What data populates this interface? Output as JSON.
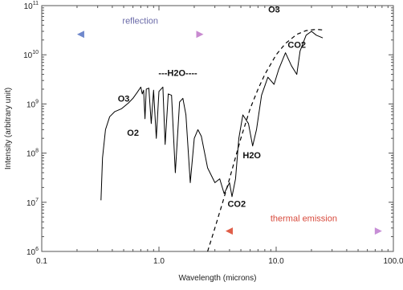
{
  "chart_data": {
    "type": "line",
    "title": "",
    "xlabel": "Wavelength (microns)",
    "ylabel": "Intensity (arbitrary unit)",
    "x_scale": "log",
    "y_scale": "log",
    "xlim": [
      0.1,
      100.0
    ],
    "ylim": [
      1000000.0,
      100000000000.0
    ],
    "x_ticks": [
      {
        "value": 0.1,
        "label": "0.1"
      },
      {
        "value": 1.0,
        "label": "1.0"
      },
      {
        "value": 10.0,
        "label": "10.0"
      },
      {
        "value": 100.0,
        "label": "100.0"
      }
    ],
    "y_ticks": [
      {
        "value": 1000000.0,
        "base": "10",
        "exp": "6"
      },
      {
        "value": 10000000.0,
        "base": "10",
        "exp": "7"
      },
      {
        "value": 100000000.0,
        "base": "10",
        "exp": "8"
      },
      {
        "value": 1000000000.0,
        "base": "10",
        "exp": "9"
      },
      {
        "value": 10000000000.0,
        "base": "10",
        "exp": "10"
      },
      {
        "value": 100000000000.0,
        "base": "10",
        "exp": "11"
      }
    ],
    "grid": false,
    "series": [
      {
        "style": "solid",
        "color": "#000000",
        "points": [
          [
            0.32,
            11000000.0
          ],
          [
            0.33,
            80000000.0
          ],
          [
            0.35,
            300000000.0
          ],
          [
            0.38,
            550000000.0
          ],
          [
            0.42,
            700000000.0
          ],
          [
            0.48,
            800000000.0
          ],
          [
            0.55,
            1050000000.0
          ],
          [
            0.6,
            1300000000.0
          ],
          [
            0.65,
            1700000000.0
          ],
          [
            0.7,
            2200000000.0
          ],
          [
            0.72,
            1600000000.0
          ],
          [
            0.74,
            1900000000.0
          ],
          [
            0.76,
            500000000.0
          ],
          [
            0.78,
            2000000000.0
          ],
          [
            0.82,
            2100000000.0
          ],
          [
            0.86,
            400000000.0
          ],
          [
            0.9,
            1900000000.0
          ],
          [
            0.95,
            200000000.0
          ],
          [
            1.0,
            1800000000.0
          ],
          [
            1.08,
            2200000000.0
          ],
          [
            1.13,
            150000000.0
          ],
          [
            1.2,
            1600000000.0
          ],
          [
            1.28,
            1500000000.0
          ],
          [
            1.38,
            40000000.0
          ],
          [
            1.5,
            1100000000.0
          ],
          [
            1.6,
            1300000000.0
          ],
          [
            1.7,
            600000000.0
          ],
          [
            1.85,
            25000000.0
          ],
          [
            2.0,
            200000000.0
          ],
          [
            2.15,
            300000000.0
          ],
          [
            2.3,
            220000000.0
          ],
          [
            2.6,
            50000000.0
          ],
          [
            3.0,
            25000000.0
          ],
          [
            3.3,
            30000000.0
          ],
          [
            3.6,
            15000000.0
          ],
          [
            4.0,
            25000000.0
          ],
          [
            4.2,
            13000000.0
          ],
          [
            4.5,
            30000000.0
          ],
          [
            4.8,
            200000000.0
          ],
          [
            5.2,
            600000000.0
          ],
          [
            5.8,
            400000000.0
          ],
          [
            6.3,
            140000000.0
          ],
          [
            6.8,
            300000000.0
          ],
          [
            7.5,
            1500000000.0
          ],
          [
            8.5,
            3500000000.0
          ],
          [
            9.6,
            2500000000.0
          ],
          [
            10.5,
            5000000000.0
          ],
          [
            12.0,
            11000000000.0
          ],
          [
            13.5,
            6000000000.0
          ],
          [
            15.0,
            4000000000.0
          ],
          [
            16.0,
            12000000000.0
          ],
          [
            18.0,
            25000000000.0
          ],
          [
            20.0,
            30000000000.0
          ],
          [
            22.0,
            25000000000.0
          ],
          [
            25.0,
            22000000000.0
          ]
        ]
      },
      {
        "style": "dashed",
        "color": "#000000",
        "points": [
          [
            2.6,
            1000000.0
          ],
          [
            3.0,
            3000000.0
          ],
          [
            3.5,
            10000000.0
          ],
          [
            4.0,
            30000000.0
          ],
          [
            5.0,
            200000000.0
          ],
          [
            6.0,
            800000000.0
          ],
          [
            7.0,
            2000000000.0
          ],
          [
            8.0,
            4000000000.0
          ],
          [
            10.0,
            10000000000.0
          ],
          [
            12.0,
            17000000000.0
          ],
          [
            15.0,
            26000000000.0
          ],
          [
            18.0,
            31000000000.0
          ],
          [
            22.0,
            33000000000.0
          ],
          [
            25.0,
            32000000000.0
          ]
        ]
      }
    ],
    "annotations": [
      {
        "text": "O3",
        "x": 0.5,
        "y": 1300000000.0
      },
      {
        "text": "O2",
        "x": 0.6,
        "y": 260000000.0
      },
      {
        "text": "---H2O----",
        "x": 1.45,
        "y": 4300000000.0
      },
      {
        "text": "CO2",
        "x": 4.6,
        "y": 9300000.0
      },
      {
        "text": "H2O",
        "x": 6.2,
        "y": 92000000.0
      },
      {
        "text": "O3",
        "x": 9.6,
        "y": 85000000000.0
      },
      {
        "text": "CO2",
        "x": 15.0,
        "y": 16000000000.0
      }
    ],
    "range_arrows": [
      {
        "label": "reflection",
        "from": 0.2,
        "to": 2.4,
        "y": 26000000000.0,
        "label_y": 50000000000.0,
        "color_from": "#6f88cc",
        "color_to": "#c88ad0"
      },
      {
        "label": "thermal emission",
        "from": 3.7,
        "to": 80.0,
        "y": 2600000.0,
        "label_y": 4800000.0,
        "color_from": "#e05e48",
        "color_to": "#c78ed6",
        "label_color": "#d84a3c"
      }
    ]
  }
}
